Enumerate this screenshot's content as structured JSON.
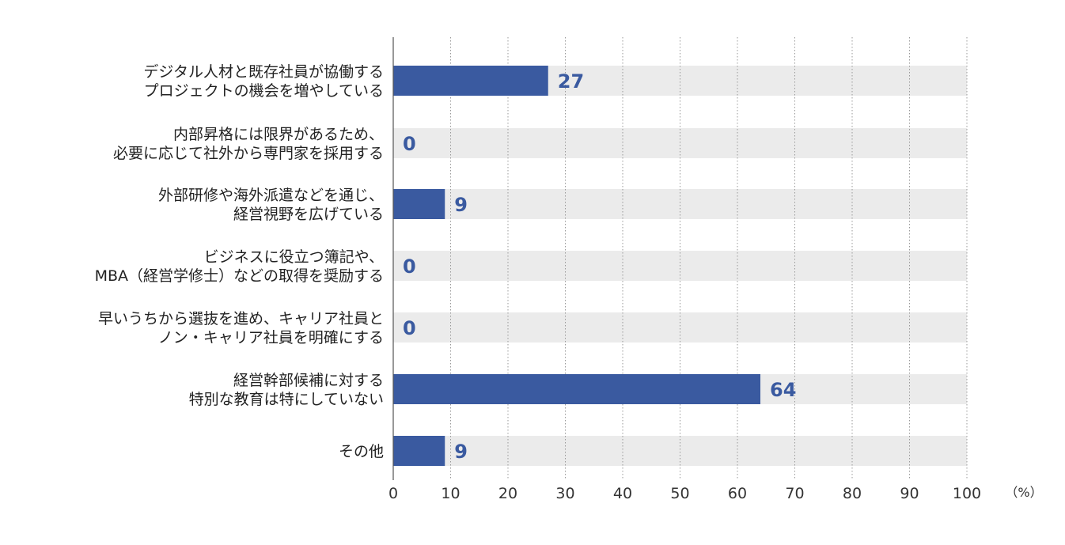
{
  "chart_data": {
    "type": "bar",
    "orientation": "horizontal",
    "categories": [
      [
        "デジタル人材と既存社員が協働する",
        "プロジェクトの機会を増やしている"
      ],
      [
        "内部昇格には限界があるため、",
        "必要に応じて社外から専門家を採用する"
      ],
      [
        "外部研修や海外派遣などを通じ、",
        "経営視野を広げている"
      ],
      [
        "ビジネスに役立つ簿記や、",
        "MBA（経営学修士）などの取得を奨励する"
      ],
      [
        "早いうちから選抜を進め、キャリア社員と",
        "ノン・キャリア社員を明確にする"
      ],
      [
        "経営幹部候補に対する",
        "特別な教育は特にしていない"
      ],
      [
        "その他"
      ]
    ],
    "values": [
      27,
      0,
      9,
      0,
      0,
      64,
      9
    ],
    "value_labels": [
      "27",
      "0",
      "9",
      "0",
      "0",
      "64",
      "9"
    ],
    "xlim": [
      0,
      100
    ],
    "x_ticks": [
      0,
      10,
      20,
      30,
      40,
      50,
      60,
      70,
      80,
      90,
      100
    ],
    "x_tick_labels": [
      "0",
      "10",
      "20",
      "30",
      "40",
      "50",
      "60",
      "70",
      "80",
      "90",
      "100"
    ],
    "unit_label": "（%）",
    "grid": true,
    "colors": {
      "bar": "#3a5aa0",
      "track": "#ebebeb",
      "value_text": "#3a5aa0",
      "grid": "#999999",
      "axis": "#555555"
    }
  }
}
